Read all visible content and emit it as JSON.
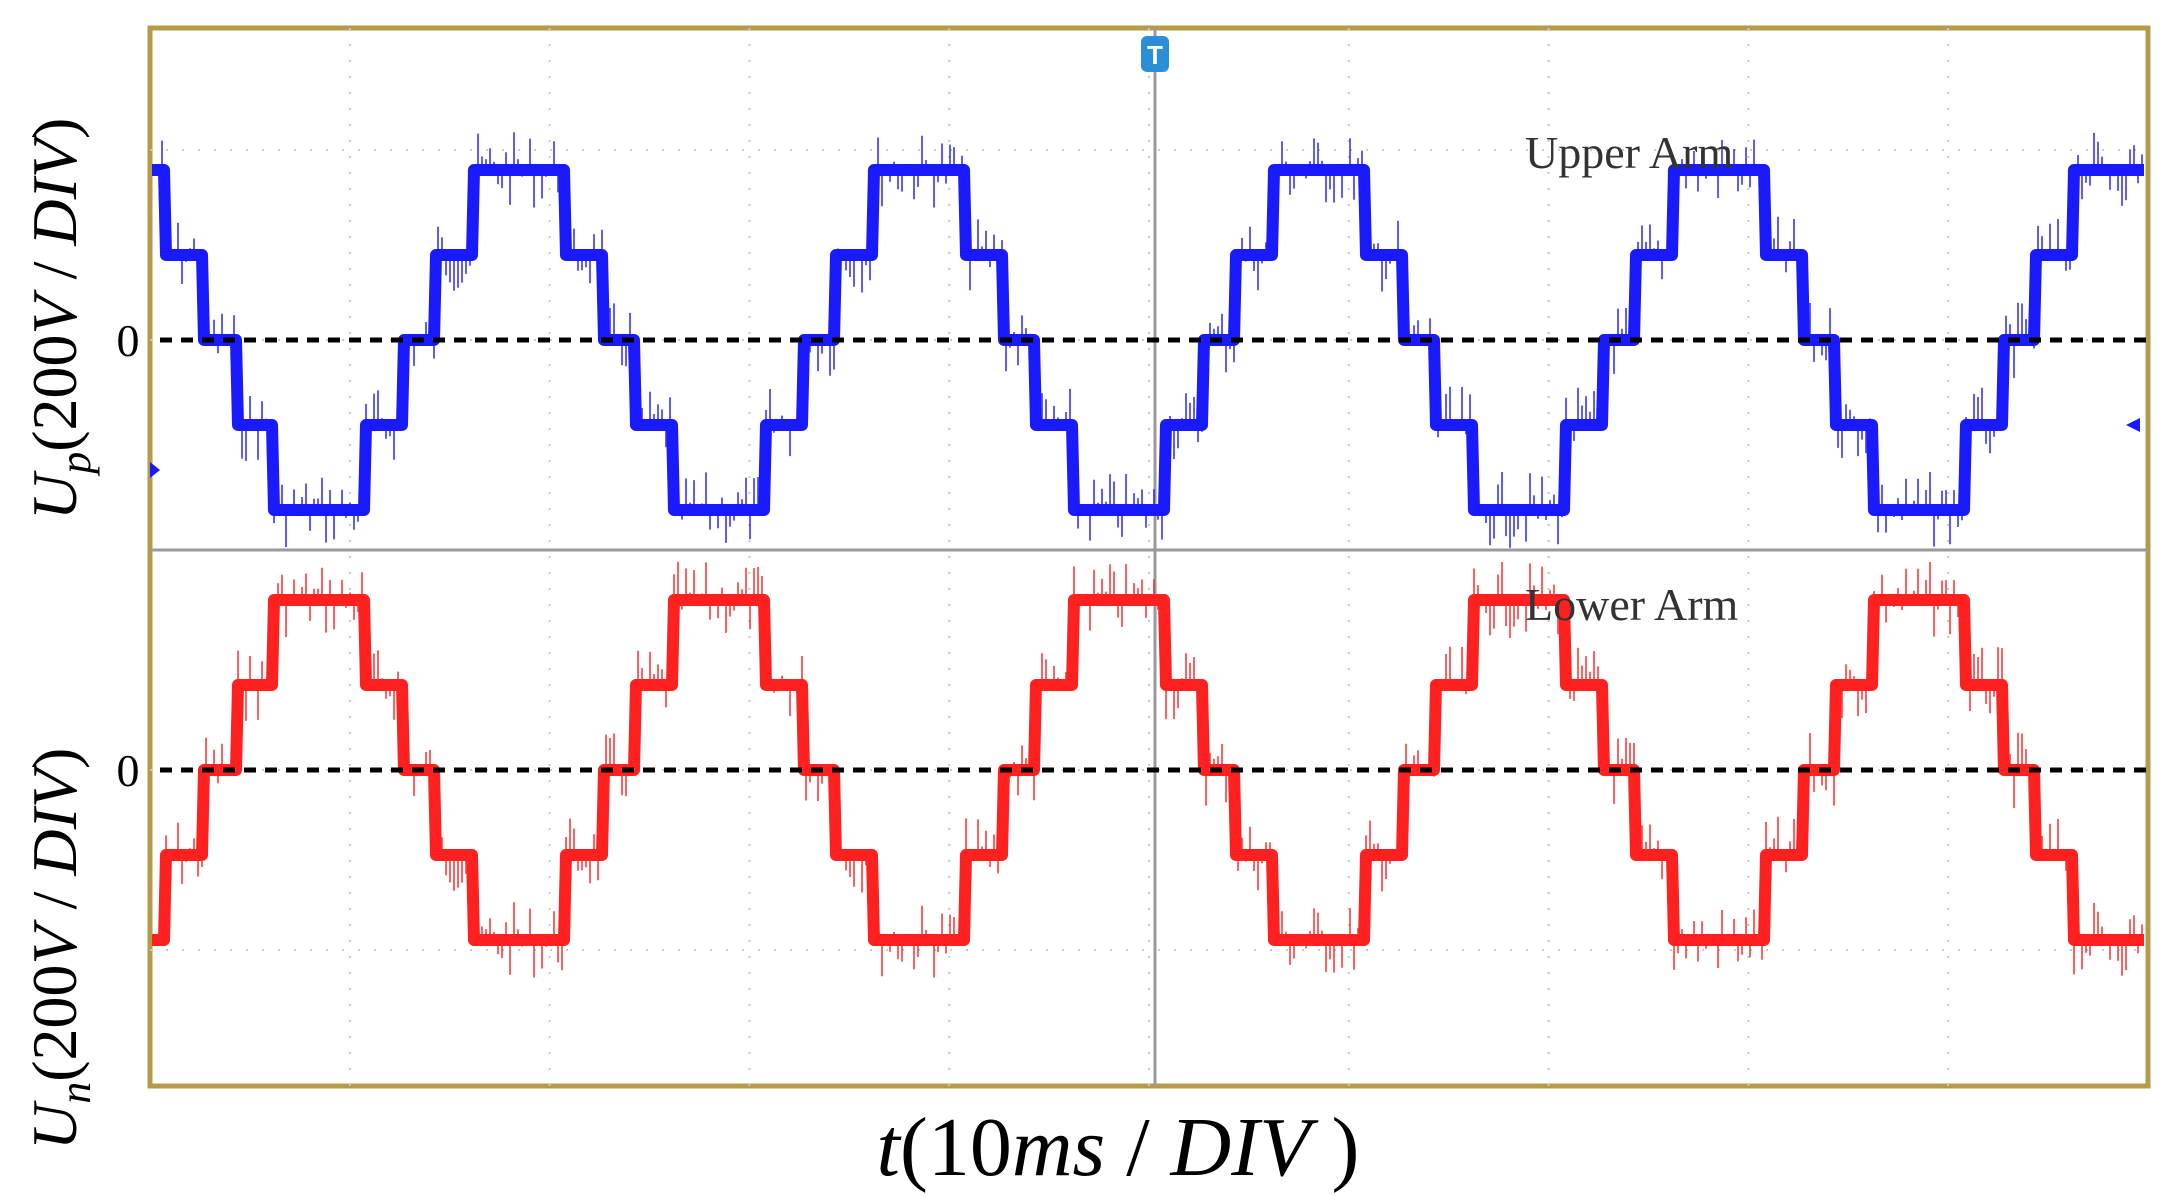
{
  "chart_data": {
    "type": "line",
    "title": "",
    "xlabel": {
      "var": "t",
      "open": "(10",
      "unit_italic": "ms",
      "slash": " / ",
      "div": "DIV",
      "close": " )"
    },
    "x_divisions": 10,
    "panels": [
      {
        "name": "Upper Arm",
        "label": "Upper Arm",
        "color": "#1a1aff",
        "ylabel": {
          "var": "U",
          "sub": "p",
          "open": "(200",
          "volt": "V",
          "slash": " / ",
          "div": "DIV",
          "close": ")"
        },
        "zero_label": "0",
        "y_divisions": 4,
        "series": [
          {
            "name": "Up",
            "x_period_div": 2.0,
            "phase_div": 1.35,
            "levels": [
              -1.0,
              -0.5,
              0,
              0.5,
              1.0
            ],
            "amplitude_div": 0.75
          }
        ]
      },
      {
        "name": "Lower Arm",
        "label": "Lower Arm",
        "color": "#ff2020",
        "ylabel": {
          "var": "U",
          "sub": "n",
          "open": "(200",
          "volt": "V",
          "slash": " / ",
          "div": "DIV",
          "close": ")"
        },
        "zero_label": "0",
        "y_divisions": 4,
        "series": [
          {
            "name": "Un",
            "x_period_div": 2.0,
            "phase_div": 0.35,
            "levels": [
              -1.0,
              -0.5,
              0,
              0.5,
              1.0
            ],
            "amplitude_div": 0.75
          }
        ]
      }
    ],
    "trigger_marker": "T"
  }
}
